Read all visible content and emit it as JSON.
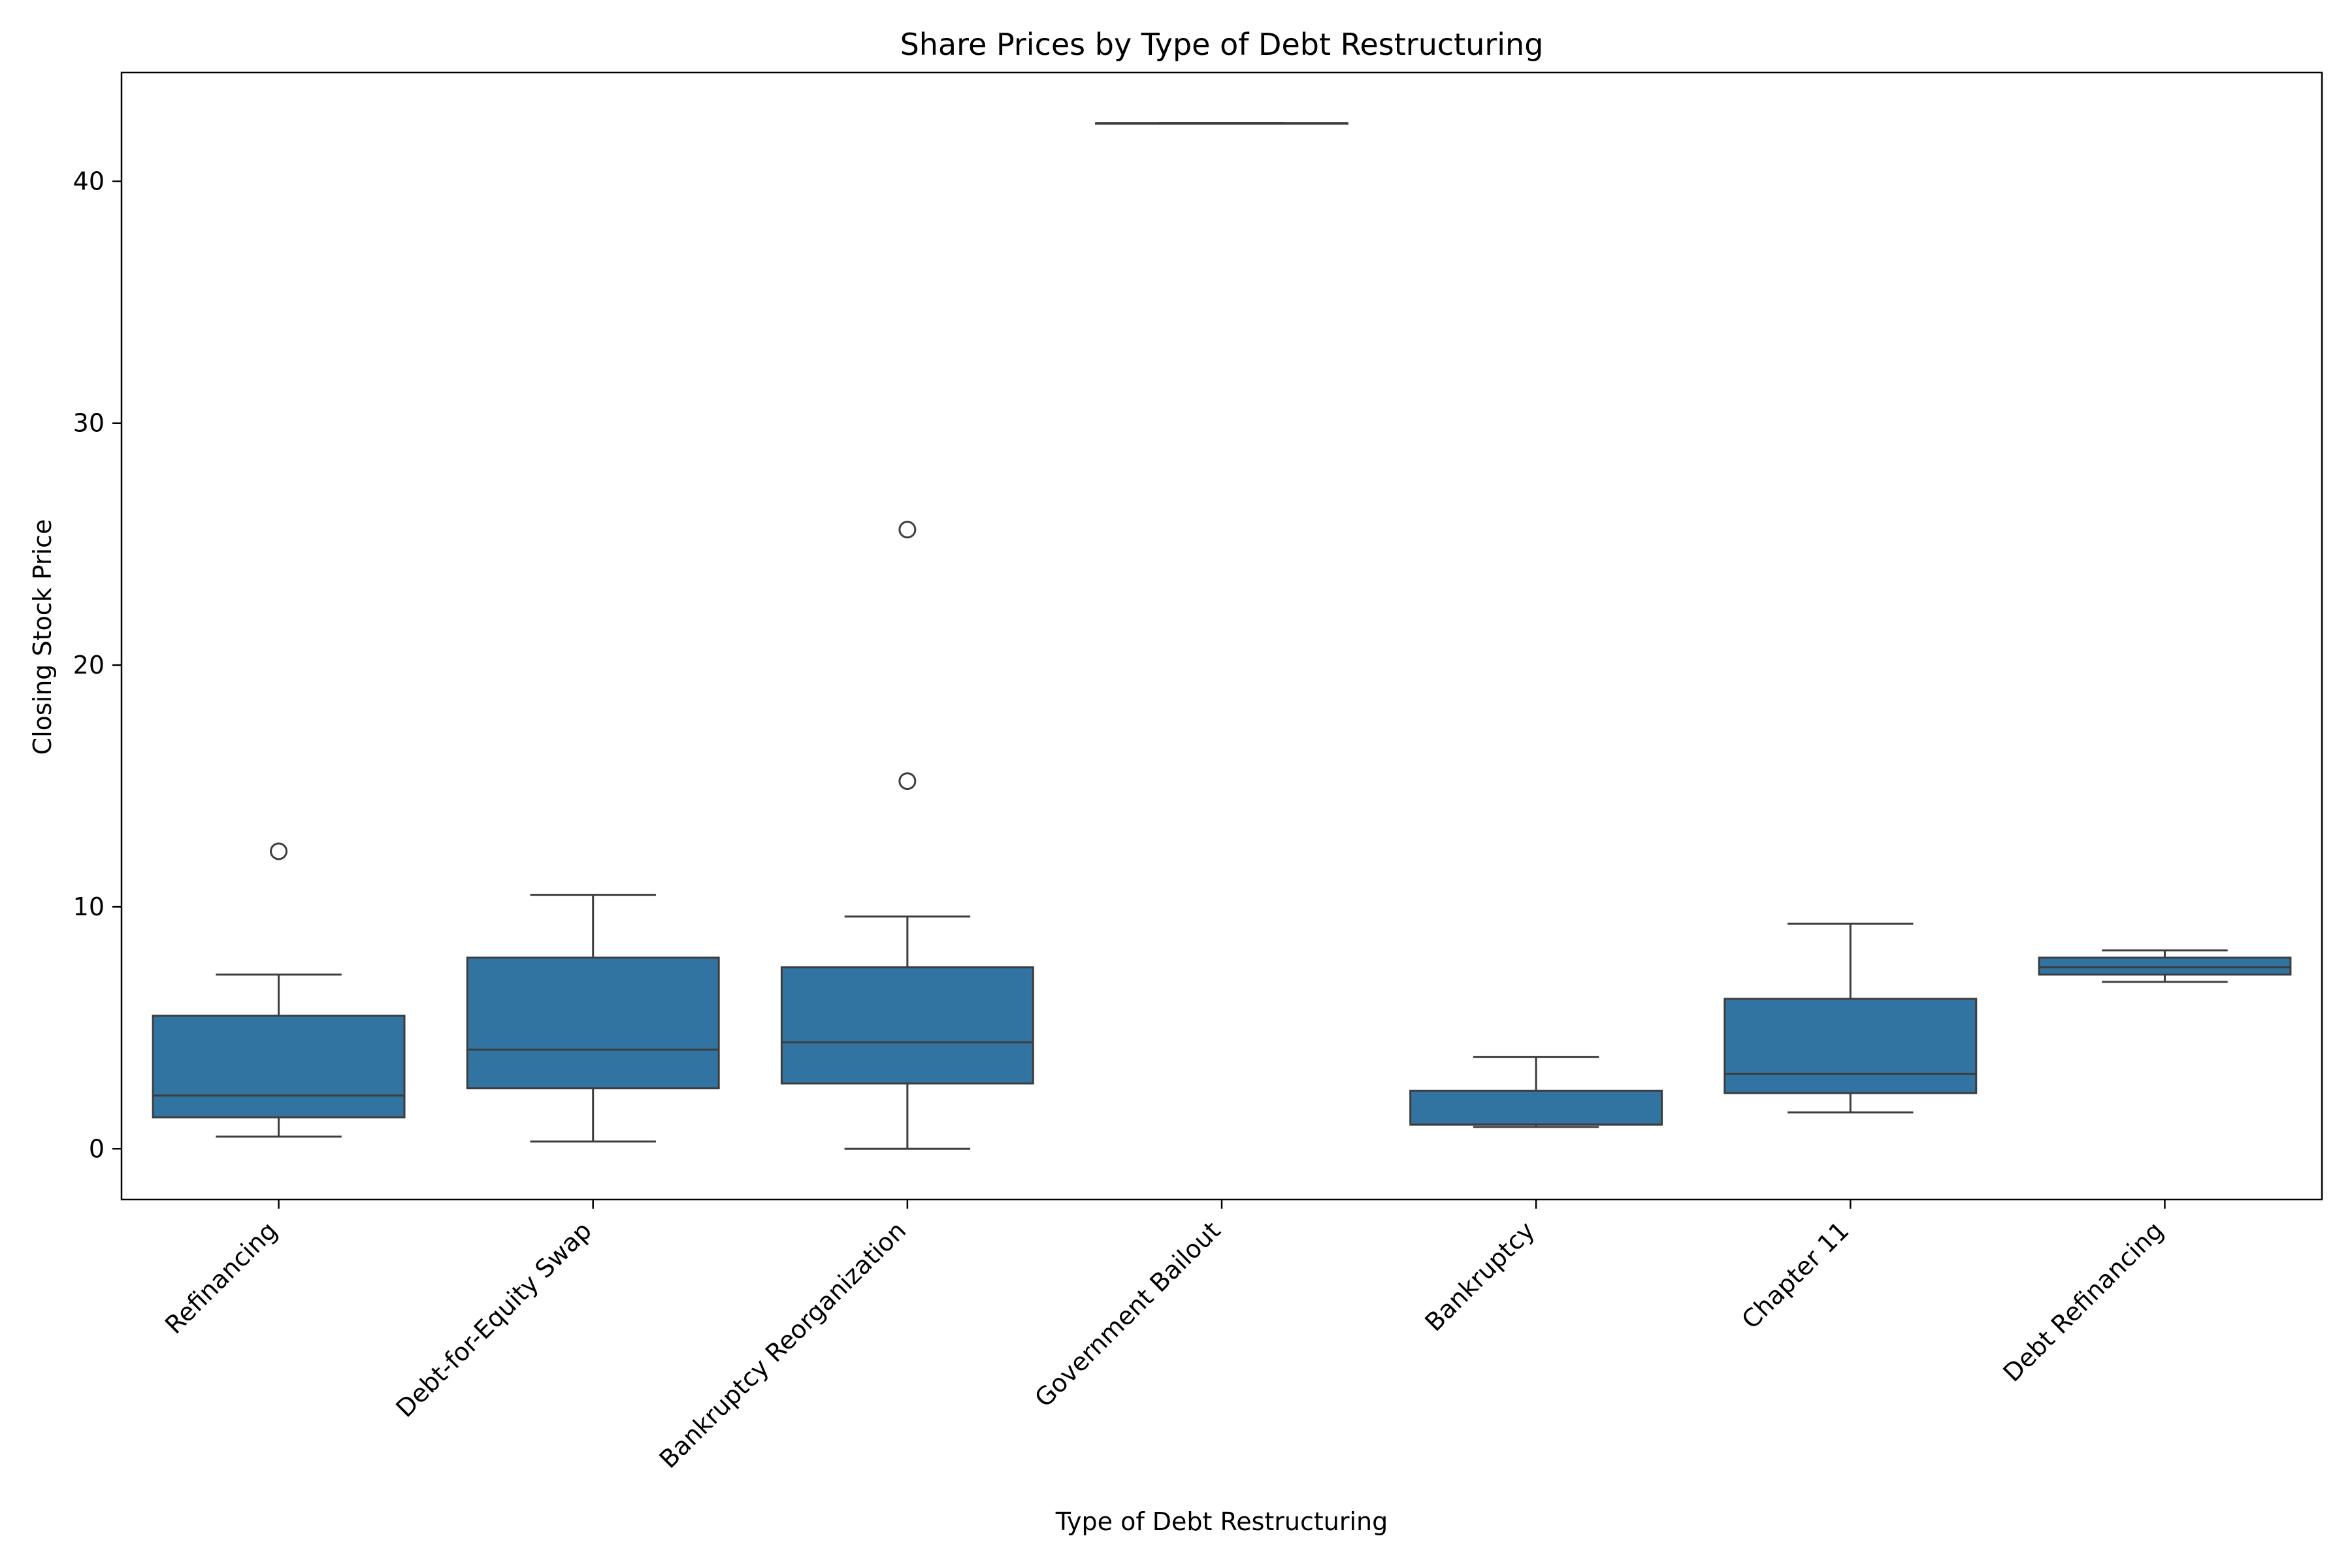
{
  "chart_data": {
    "type": "box",
    "title": "Share Prices by Type of Debt Restructuring",
    "xlabel": "Type of Debt Restructuring",
    "ylabel": "Closing Stock Price",
    "ylim": [
      -2.1,
      44.5
    ],
    "yticks": [
      0,
      10,
      20,
      30,
      40
    ],
    "grid": false,
    "box_color": "#3274a1",
    "line_color": "#3d3d3d",
    "categories": [
      "Refinancing",
      "Debt-for-Equity Swap",
      "Bankruptcy Reorganization",
      "Government Bailout",
      "Bankruptcy",
      "Chapter 11",
      "Debt Refinancing"
    ],
    "boxes": [
      {
        "category": "Refinancing",
        "whisker_low": 0.5,
        "q1": 1.3,
        "median": 2.2,
        "q3": 5.5,
        "whisker_high": 7.2,
        "outliers": [
          12.3
        ]
      },
      {
        "category": "Debt-for-Equity Swap",
        "whisker_low": 0.3,
        "q1": 2.5,
        "median": 4.1,
        "q3": 7.9,
        "whisker_high": 10.5,
        "outliers": []
      },
      {
        "category": "Bankruptcy Reorganization",
        "whisker_low": 0.0,
        "q1": 2.7,
        "median": 4.4,
        "q3": 7.5,
        "whisker_high": 9.6,
        "outliers": [
          15.2,
          25.6
        ]
      },
      {
        "category": "Government Bailout",
        "whisker_low": 42.4,
        "q1": 42.4,
        "median": 42.4,
        "q3": 42.4,
        "whisker_high": 42.4,
        "outliers": []
      },
      {
        "category": "Bankruptcy",
        "whisker_low": 0.9,
        "q1": 1.0,
        "median": 1.0,
        "q3": 2.4,
        "whisker_high": 3.8,
        "outliers": []
      },
      {
        "category": "Chapter 11",
        "whisker_low": 1.5,
        "q1": 2.3,
        "median": 3.1,
        "q3": 6.2,
        "whisker_high": 9.3,
        "outliers": []
      },
      {
        "category": "Debt Refinancing",
        "whisker_low": 6.9,
        "q1": 7.2,
        "median": 7.5,
        "q3": 7.9,
        "whisker_high": 8.2,
        "outliers": []
      }
    ]
  }
}
